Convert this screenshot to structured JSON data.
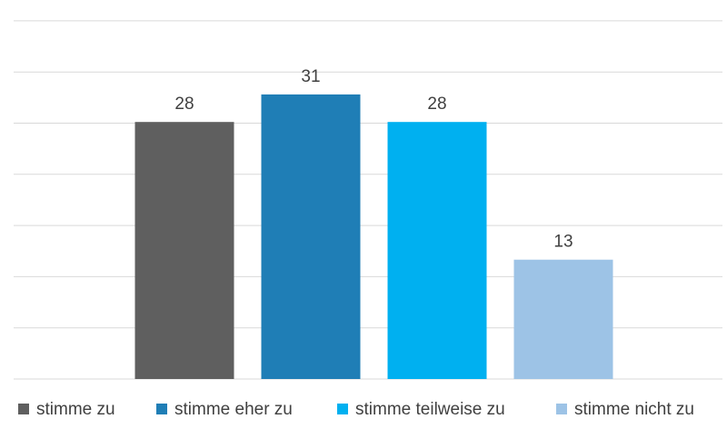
{
  "chart_data": {
    "type": "bar",
    "categories": [
      "stimme zu",
      "stimme eher zu",
      "stimme teilweise zu",
      "stimme nicht zu"
    ],
    "values": [
      28,
      31,
      28,
      13
    ],
    "colors": [
      "#5f5f5f",
      "#1f7eb6",
      "#00b0f0",
      "#9dc3e6"
    ],
    "ylim": [
      0,
      35
    ],
    "grid": true,
    "legend": "bottom",
    "data_labels": true
  }
}
